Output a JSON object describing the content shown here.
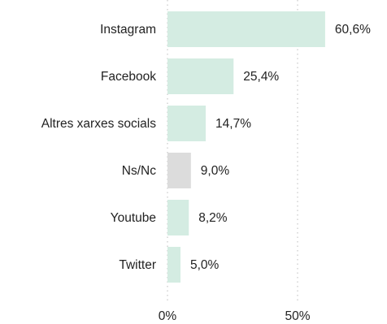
{
  "chart_data": {
    "type": "bar",
    "orientation": "horizontal",
    "categories": [
      "Instagram",
      "Facebook",
      "Altres xarxes socials",
      "Ns/Nc",
      "Youtube",
      "Twitter"
    ],
    "values": [
      60.6,
      25.4,
      14.7,
      9.0,
      8.2,
      5.0
    ],
    "value_labels": [
      "60,6%",
      "25,4%",
      "14,7%",
      "9,0%",
      "8,2%",
      "5,0%"
    ],
    "bar_colors": [
      "#d4ece2",
      "#d4ece2",
      "#d4ece2",
      "#dcdcdc",
      "#d4ece2",
      "#d4ece2"
    ],
    "xlim": [
      0,
      65
    ],
    "xticks": [
      0,
      50
    ],
    "xtick_labels": [
      "0%",
      "50%"
    ],
    "grid": true,
    "legend": "none"
  }
}
